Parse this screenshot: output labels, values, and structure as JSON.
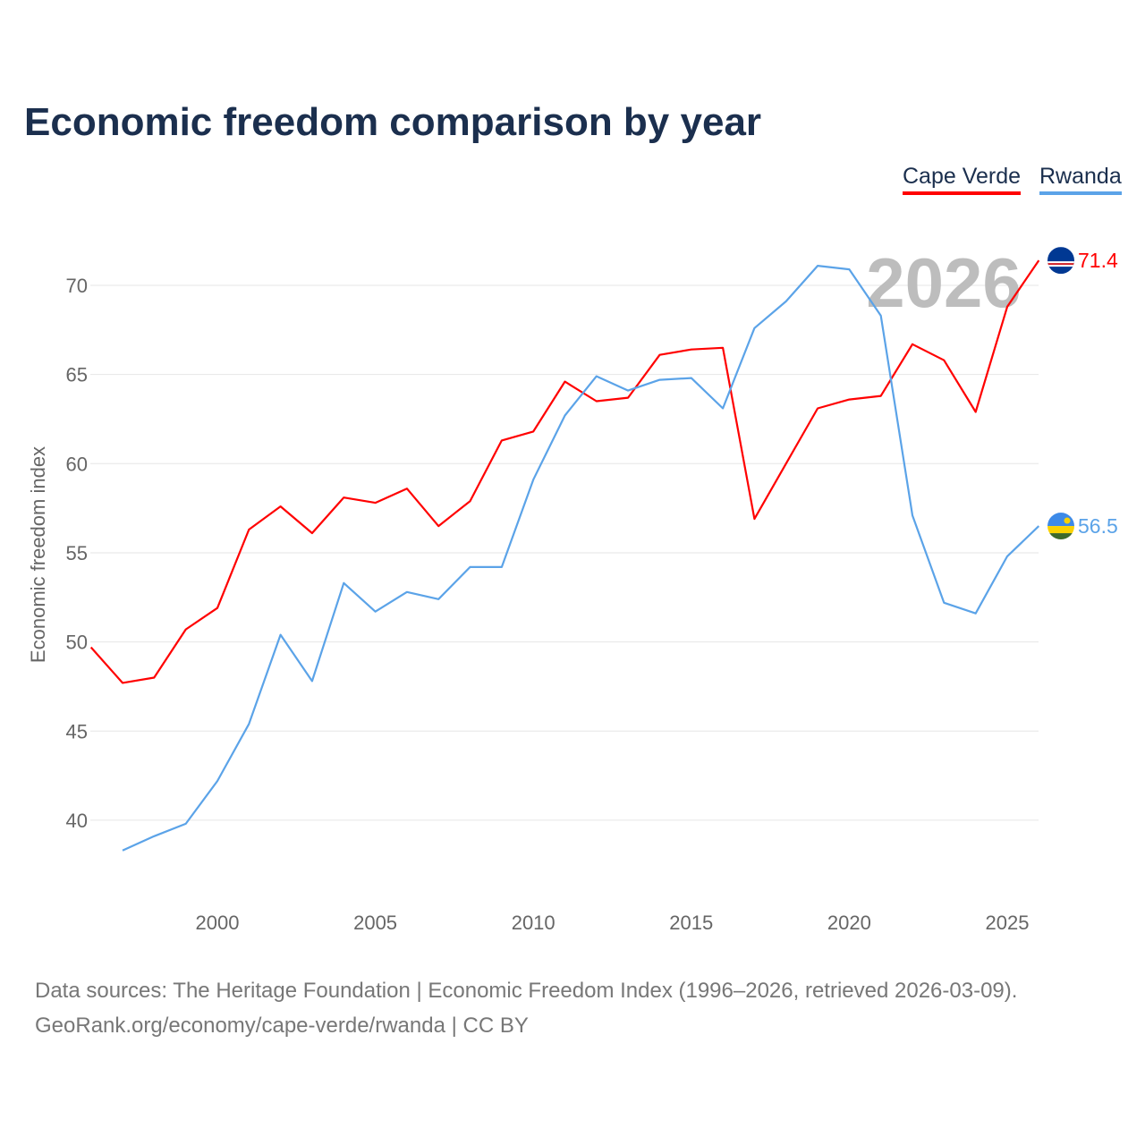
{
  "chart_data": {
    "type": "line",
    "title": "Economic freedom comparison by year",
    "xlabel": "",
    "ylabel": "Economic freedom index",
    "xlim": [
      1996,
      2026
    ],
    "ylim": [
      35,
      73
    ],
    "yticks": [
      40,
      45,
      50,
      55,
      60,
      65,
      70
    ],
    "xticks": [
      2000,
      2005,
      2010,
      2015,
      2020,
      2025
    ],
    "grid": true,
    "legend_position": "top-right",
    "watermark_year": "2026",
    "series": [
      {
        "name": "Cape Verde",
        "color": "#ff0000",
        "end_label": "71.4",
        "x": [
          1996,
          1997,
          1998,
          1999,
          2000,
          2001,
          2002,
          2003,
          2004,
          2005,
          2006,
          2007,
          2008,
          2009,
          2010,
          2011,
          2012,
          2013,
          2014,
          2015,
          2016,
          2017,
          2018,
          2019,
          2020,
          2021,
          2022,
          2023,
          2024,
          2025,
          2026
        ],
        "values": [
          49.7,
          47.7,
          48.0,
          50.7,
          51.9,
          56.3,
          57.6,
          56.1,
          58.1,
          57.8,
          58.6,
          56.5,
          57.9,
          61.3,
          61.8,
          64.6,
          63.5,
          63.7,
          66.1,
          66.4,
          66.5,
          56.9,
          60.0,
          63.1,
          63.6,
          63.8,
          66.7,
          65.8,
          62.9,
          68.8,
          71.4
        ]
      },
      {
        "name": "Rwanda",
        "color": "#5ba3e8",
        "end_label": "56.5",
        "x": [
          1997,
          1998,
          1999,
          2000,
          2001,
          2002,
          2003,
          2004,
          2005,
          2006,
          2007,
          2008,
          2009,
          2010,
          2011,
          2012,
          2013,
          2014,
          2015,
          2016,
          2017,
          2018,
          2019,
          2020,
          2021,
          2022,
          2023,
          2024,
          2025,
          2026
        ],
        "values": [
          38.3,
          39.1,
          39.8,
          42.2,
          45.4,
          50.4,
          47.8,
          53.3,
          51.7,
          52.8,
          52.4,
          54.2,
          54.2,
          59.1,
          62.7,
          64.9,
          64.1,
          64.7,
          64.8,
          63.1,
          67.6,
          69.1,
          71.1,
          70.9,
          68.3,
          57.1,
          52.2,
          51.6,
          54.8,
          56.5
        ]
      }
    ]
  },
  "footer": {
    "line1": "Data sources: The Heritage Foundation | Economic Freedom Index (1996–2026, retrieved 2026-03-09).",
    "line2": "GeoRank.org/economy/cape-verde/rwanda | CC BY"
  }
}
